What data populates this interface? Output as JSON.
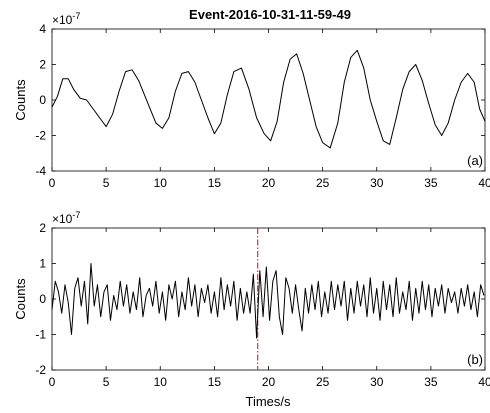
{
  "title": "Event-2016-10-31-11-59-49",
  "chart_data": [
    {
      "type": "line",
      "panel_label": "(a)",
      "ylabel": "Counts",
      "exponent": "-7",
      "xlabel": "",
      "xlim": [
        0,
        40
      ],
      "ylim": [
        -4,
        4
      ],
      "xticks": [
        "0",
        "5",
        "10",
        "15",
        "20",
        "25",
        "30",
        "35",
        "40"
      ],
      "yticks": [
        "-4",
        "-2",
        "0",
        "2",
        "4"
      ],
      "line_color": "#000000",
      "x": [
        0,
        0.5,
        1,
        1.5,
        2,
        2.6,
        3.2,
        3.8,
        4.4,
        5,
        5.6,
        6.2,
        6.8,
        7.4,
        8,
        8.6,
        9.2,
        9.6,
        10.2,
        10.8,
        11.4,
        12,
        12.6,
        13.2,
        13.8,
        14.4,
        15,
        15.6,
        16.2,
        16.8,
        17.5,
        18.2,
        18.9,
        19.6,
        20.2,
        20.8,
        21.4,
        22,
        22.6,
        23.2,
        23.8,
        24.4,
        25,
        25.7,
        26.4,
        27,
        27.6,
        28.2,
        28.8,
        29.4,
        30,
        30.6,
        31.2,
        31.8,
        32.4,
        33,
        33.6,
        34.2,
        34.8,
        35.4,
        36,
        36.6,
        37.2,
        37.8,
        38.4,
        39,
        39.5,
        40
      ],
      "values": [
        -0.4,
        0.2,
        1.2,
        1.2,
        0.6,
        0.1,
        0.0,
        -0.5,
        -1.0,
        -1.5,
        -0.8,
        0.5,
        1.6,
        1.7,
        1.1,
        0.2,
        -0.7,
        -1.3,
        -1.6,
        -1.0,
        0.5,
        1.5,
        1.6,
        1.0,
        0.0,
        -1.0,
        -1.9,
        -1.3,
        0.3,
        1.6,
        1.8,
        0.6,
        -1.0,
        -1.9,
        -2.3,
        -1.2,
        1.0,
        2.3,
        2.6,
        1.5,
        0.0,
        -1.5,
        -2.4,
        -2.7,
        -1.3,
        1.0,
        2.4,
        2.8,
        1.8,
        0.0,
        -1.2,
        -2.3,
        -2.5,
        -1.0,
        0.6,
        1.6,
        2.0,
        1.1,
        -0.2,
        -1.4,
        -2.0,
        -1.3,
        0.0,
        1.0,
        1.5,
        1.0,
        -0.5,
        -1.2
      ]
    },
    {
      "type": "line",
      "panel_label": "(b)",
      "ylabel": "Counts",
      "exponent": "-7",
      "xlabel": "Times/s",
      "xlim": [
        0,
        40
      ],
      "ylim": [
        -2,
        2
      ],
      "xticks": [
        "0",
        "5",
        "10",
        "15",
        "20",
        "25",
        "30",
        "35",
        "40"
      ],
      "yticks": [
        "-2",
        "-1",
        "0",
        "1",
        "2"
      ],
      "line_color": "#000000",
      "marker_x": 19,
      "marker_color": "#e0322a",
      "x": [
        0,
        0.3,
        0.6,
        0.9,
        1.2,
        1.5,
        1.8,
        2.1,
        2.4,
        2.7,
        3.0,
        3.3,
        3.6,
        3.9,
        4.2,
        4.5,
        4.8,
        5.1,
        5.4,
        5.7,
        6.0,
        6.3,
        6.6,
        6.9,
        7.2,
        7.5,
        7.8,
        8.1,
        8.4,
        8.7,
        9.0,
        9.3,
        9.6,
        9.9,
        10.2,
        10.5,
        10.8,
        11.1,
        11.4,
        11.7,
        12.0,
        12.3,
        12.6,
        12.9,
        13.2,
        13.5,
        13.8,
        14.1,
        14.4,
        14.7,
        15.0,
        15.3,
        15.6,
        15.9,
        16.2,
        16.5,
        16.8,
        17.1,
        17.4,
        17.7,
        18.0,
        18.3,
        18.6,
        18.9,
        19.2,
        19.5,
        19.8,
        20.1,
        20.4,
        20.7,
        21.0,
        21.3,
        21.6,
        21.9,
        22.2,
        22.5,
        22.8,
        23.1,
        23.4,
        23.7,
        24.0,
        24.3,
        24.6,
        24.9,
        25.2,
        25.5,
        25.8,
        26.1,
        26.4,
        26.7,
        27.0,
        27.3,
        27.6,
        27.9,
        28.2,
        28.5,
        28.8,
        29.1,
        29.4,
        29.7,
        30.0,
        30.3,
        30.6,
        30.9,
        31.2,
        31.5,
        31.8,
        32.1,
        32.4,
        32.7,
        33.0,
        33.3,
        33.6,
        33.9,
        34.2,
        34.5,
        34.8,
        35.1,
        35.4,
        35.7,
        36.0,
        36.3,
        36.6,
        36.9,
        37.2,
        37.5,
        37.8,
        38.1,
        38.4,
        38.7,
        39.0,
        39.3,
        39.6,
        39.9
      ],
      "values": [
        -0.3,
        0.5,
        0.2,
        -0.4,
        0.4,
        -0.1,
        -1.0,
        0.3,
        0.6,
        -0.2,
        0.5,
        -0.7,
        1.0,
        -0.2,
        0.4,
        -0.5,
        0.2,
        0.4,
        -0.6,
        0.1,
        -0.3,
        0.5,
        -0.2,
        0.4,
        -0.4,
        0.2,
        -0.3,
        0.6,
        -0.5,
        0.1,
        0.3,
        -0.2,
        0.5,
        -0.4,
        0.2,
        -0.6,
        0.4,
        0.0,
        0.5,
        -0.5,
        0.2,
        -0.3,
        0.6,
        -0.2,
        0.4,
        -0.5,
        0.3,
        -0.1,
        0.4,
        -0.4,
        0.2,
        -0.5,
        0.6,
        -0.3,
        0.4,
        -0.2,
        0.5,
        -0.6,
        0.3,
        -0.4,
        0.2,
        -0.4,
        0.7,
        -1.1,
        0.8,
        -0.5,
        0.9,
        -0.6,
        0.5,
        0.8,
        -0.5,
        -1.0,
        0.6,
        0.3,
        -0.4,
        0.4,
        -0.3,
        -0.9,
        0.3,
        -0.4,
        0.4,
        -0.3,
        0.5,
        -0.5,
        0.2,
        -0.4,
        0.5,
        -0.3,
        0.4,
        -0.2,
        0.5,
        -0.6,
        0.3,
        -0.4,
        0.5,
        -0.2,
        0.4,
        -0.5,
        0.6,
        -0.4,
        0.3,
        -0.6,
        0.5,
        -0.3,
        0.4,
        -0.5,
        0.6,
        -0.4,
        0.2,
        -0.3,
        0.5,
        -0.6,
        0.3,
        -0.4,
        0.5,
        -0.3,
        0.4,
        -0.5,
        0.3,
        -0.2,
        0.4,
        -0.4,
        0.3,
        -0.1,
        0.2,
        -0.4,
        0.3,
        -0.2,
        0.4,
        -0.3,
        0.2,
        -0.5,
        0.4,
        0.1
      ]
    }
  ]
}
